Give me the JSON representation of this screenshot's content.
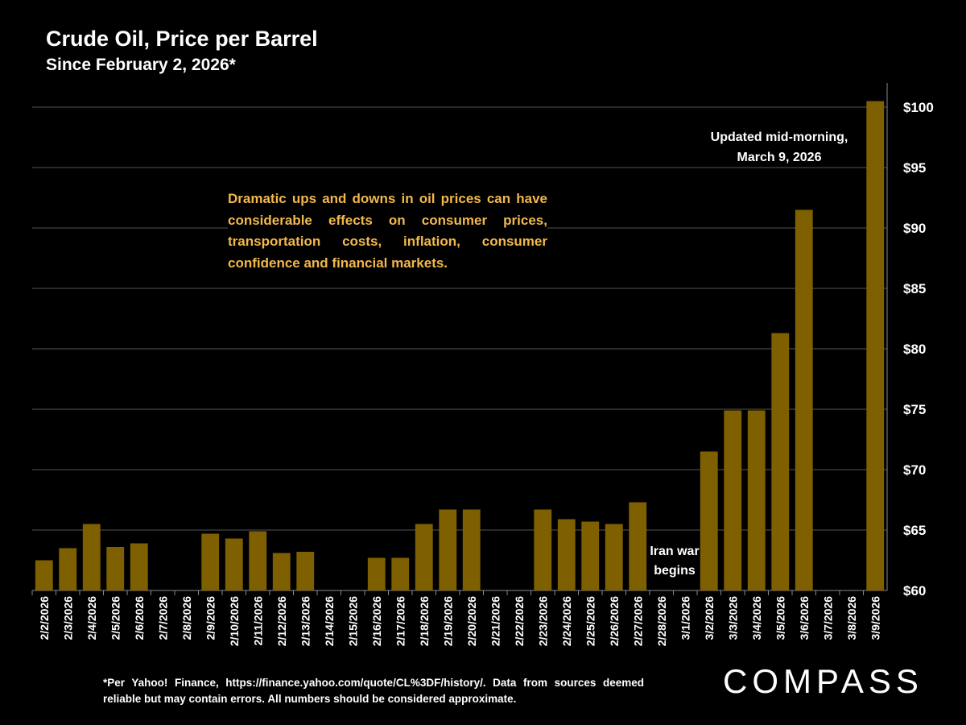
{
  "chart_data": {
    "type": "bar",
    "title": "Crude Oil, Price per Barrel",
    "subtitle": "Since February 2, 2026*",
    "categories": [
      "2/2/2026",
      "2/3/2026",
      "2/4/2026",
      "2/5/2026",
      "2/6/2026",
      "2/7/2026",
      "2/8/2026",
      "2/9/2026",
      "2/10/2026",
      "2/11/2026",
      "2/12/2026",
      "2/13/2026",
      "2/14/2026",
      "2/15/2026",
      "2/16/2026",
      "2/17/2026",
      "2/18/2026",
      "2/19/2026",
      "2/20/2026",
      "2/21/2026",
      "2/22/2026",
      "2/23/2026",
      "2/24/2026",
      "2/25/2026",
      "2/26/2026",
      "2/27/2026",
      "2/28/2026",
      "3/1/2026",
      "3/2/2026",
      "3/3/2026",
      "3/4/2026",
      "3/5/2026",
      "3/6/2026",
      "3/7/2026",
      "3/8/2026",
      "3/9/2026"
    ],
    "values": [
      62.5,
      63.5,
      65.5,
      63.6,
      63.9,
      null,
      null,
      64.7,
      64.3,
      64.9,
      63.1,
      63.2,
      null,
      null,
      62.7,
      62.7,
      65.5,
      66.7,
      66.7,
      null,
      null,
      66.7,
      65.9,
      65.7,
      65.5,
      67.3,
      null,
      null,
      71.5,
      74.9,
      74.9,
      81.3,
      91.5,
      null,
      null,
      100.5
    ],
    "color": "#7f6000",
    "ylim": [
      60,
      102
    ],
    "yticks": [
      {
        "value": 60,
        "label": "$60"
      },
      {
        "value": 65,
        "label": "$65"
      },
      {
        "value": 70,
        "label": "$70"
      },
      {
        "value": 75,
        "label": "$75"
      },
      {
        "value": 80,
        "label": "$80"
      },
      {
        "value": 85,
        "label": "$85"
      },
      {
        "value": 90,
        "label": "$90"
      },
      {
        "value": 95,
        "label": "$95"
      },
      {
        "value": 100,
        "label": "$100"
      }
    ],
    "grid": true,
    "annotations": [
      "Dramatic ups and downs in oil prices can have considerable effects on consumer prices, transportation costs, inflation, consumer confidence and financial markets.",
      "Updated mid-morning, March 9, 2026",
      "Iran war begins"
    ],
    "footnote": "*Per Yahoo! Finance, https://finance.yahoo.com/quote/CL%3DF/history/. Data from sources deemed reliable but may contain errors. All numbers should be considered approximate.",
    "logo": "COMPASS"
  }
}
